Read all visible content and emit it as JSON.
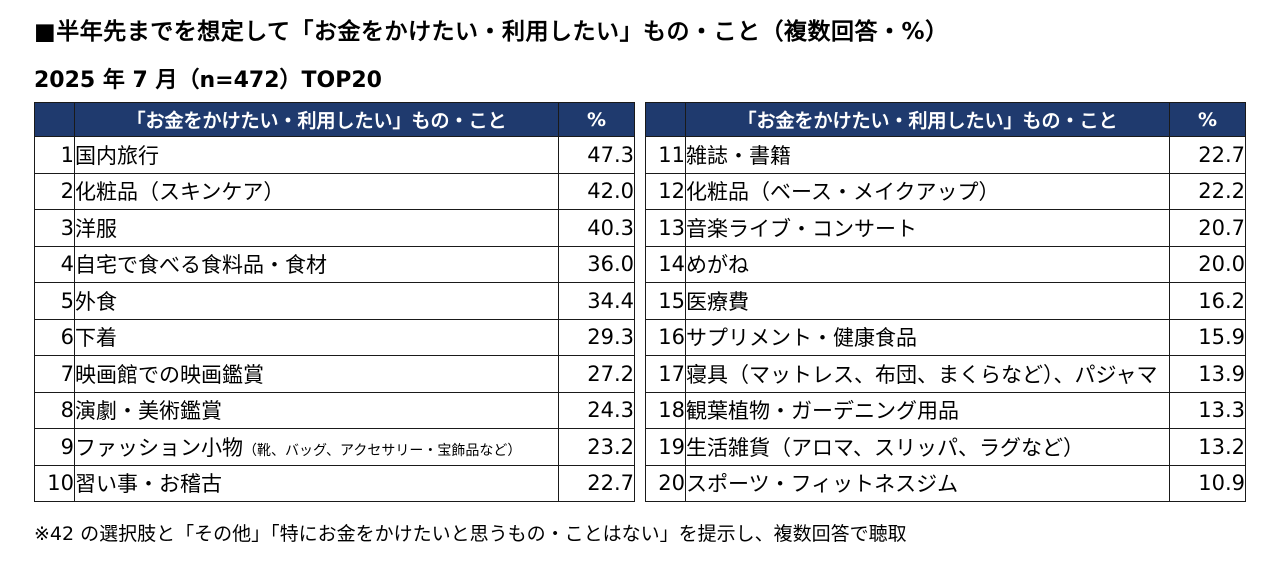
{
  "title": "■半年先までを想定して「お金をかけたい・利用したい」もの・こと（複数回答・%）",
  "subtitle": "2025 年 7 月（n=472）TOP20",
  "table_header": {
    "item": "「お金をかけたい・利用したい」もの・こと",
    "value": "%"
  },
  "left_rows": [
    {
      "rank": "1",
      "item": "国内旅行",
      "item_sub": "",
      "value": "47.3"
    },
    {
      "rank": "2",
      "item": "化粧品（スキンケア）",
      "item_sub": "",
      "value": "42.0"
    },
    {
      "rank": "3",
      "item": "洋服",
      "item_sub": "",
      "value": "40.3"
    },
    {
      "rank": "4",
      "item": "自宅で食べる食料品・食材",
      "item_sub": "",
      "value": "36.0"
    },
    {
      "rank": "5",
      "item": "外食",
      "item_sub": "",
      "value": "34.4"
    },
    {
      "rank": "6",
      "item": "下着",
      "item_sub": "",
      "value": "29.3"
    },
    {
      "rank": "7",
      "item": "映画館での映画鑑賞",
      "item_sub": "",
      "value": "27.2"
    },
    {
      "rank": "8",
      "item": "演劇・美術鑑賞",
      "item_sub": "",
      "value": "24.3"
    },
    {
      "rank": "9",
      "item": "ファッション小物",
      "item_sub": "（靴、バッグ、アクセサリー・宝飾品など）",
      "value": "23.2"
    },
    {
      "rank": "10",
      "item": "習い事・お稽古",
      "item_sub": "",
      "value": "22.7"
    }
  ],
  "right_rows": [
    {
      "rank": "11",
      "item": "雑誌・書籍",
      "item_sub": "",
      "value": "22.7"
    },
    {
      "rank": "12",
      "item": "化粧品（ベース・メイクアップ）",
      "item_sub": "",
      "value": "22.2"
    },
    {
      "rank": "13",
      "item": "音楽ライブ・コンサート",
      "item_sub": "",
      "value": "20.7"
    },
    {
      "rank": "14",
      "item": "めがね",
      "item_sub": "",
      "value": "20.0"
    },
    {
      "rank": "15",
      "item": "医療費",
      "item_sub": "",
      "value": "16.2"
    },
    {
      "rank": "16",
      "item": "サプリメント・健康食品",
      "item_sub": "",
      "value": "15.9"
    },
    {
      "rank": "17",
      "item": "寝具（マットレス、布団、まくらなど）、パジャマ",
      "item_sub": "",
      "value": "13.9"
    },
    {
      "rank": "18",
      "item": "観葉植物・ガーデニング用品",
      "item_sub": "",
      "value": "13.3"
    },
    {
      "rank": "19",
      "item": "生活雑貨（アロマ、スリッパ、ラグなど）",
      "item_sub": "",
      "value": "13.2"
    },
    {
      "rank": "20",
      "item": "スポーツ・フィットネスジム",
      "item_sub": "",
      "value": "10.9"
    }
  ],
  "footnote": "※42 の選択肢と「その他」「特にお金をかけたいと思うもの・ことはない」を提示し、複数回答で聴取",
  "colors": {
    "header_bg": "#1f3a6e",
    "header_text": "#ffffff",
    "border": "#1a1a1a"
  }
}
